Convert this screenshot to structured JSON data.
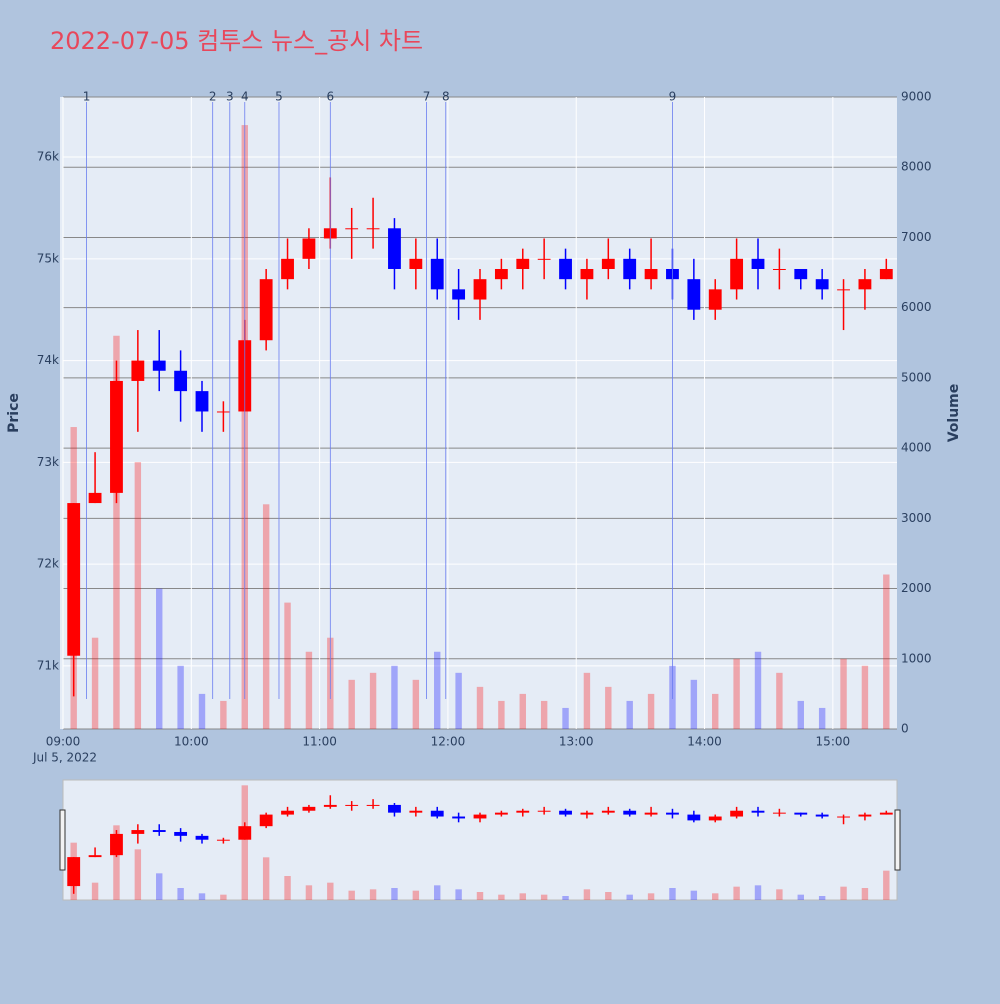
{
  "chart_data": {
    "type": "candlestick",
    "title": "2022-07-05 컴투스 뉴스_공시 차트",
    "x": [
      "09:00",
      "09:10",
      "09:20",
      "09:30",
      "09:40",
      "09:50",
      "10:00",
      "10:10",
      "10:20",
      "10:30",
      "10:40",
      "10:50",
      "11:00",
      "11:10",
      "11:20",
      "11:30",
      "11:40",
      "11:50",
      "12:00",
      "12:10",
      "12:20",
      "12:30",
      "12:40",
      "12:50",
      "13:00",
      "13:10",
      "13:20",
      "13:30",
      "13:40",
      "13:50",
      "14:00",
      "14:10",
      "14:20",
      "14:30",
      "14:40",
      "14:50",
      "15:00",
      "15:10",
      "15:20"
    ],
    "open": [
      71100,
      72600,
      72700,
      73800,
      74000,
      73900,
      73700,
      73500,
      73500,
      74200,
      74800,
      75000,
      75200,
      75300,
      75300,
      75300,
      74900,
      75000,
      74700,
      74600,
      74800,
      74900,
      75000,
      75000,
      74800,
      74900,
      75000,
      74800,
      74900,
      74800,
      74500,
      74700,
      75000,
      74900,
      74900,
      74800,
      74700,
      74700,
      74800
    ],
    "high": [
      72600,
      73100,
      74000,
      74300,
      74300,
      74100,
      73800,
      73600,
      74400,
      74900,
      75200,
      75300,
      75800,
      75500,
      75600,
      75400,
      75200,
      75200,
      74900,
      74900,
      75000,
      75100,
      75200,
      75100,
      75000,
      75200,
      75100,
      75200,
      75100,
      75000,
      74800,
      75200,
      75200,
      75100,
      74900,
      74900,
      74800,
      74900,
      75000
    ],
    "low": [
      70700,
      72600,
      72600,
      73300,
      73700,
      73400,
      73300,
      73300,
      73500,
      74100,
      74700,
      74900,
      75100,
      75000,
      75100,
      74700,
      74700,
      74600,
      74400,
      74400,
      74700,
      74700,
      74800,
      74700,
      74600,
      74800,
      74700,
      74700,
      74600,
      74400,
      74400,
      74600,
      74700,
      74700,
      74700,
      74600,
      74300,
      74500,
      74800
    ],
    "close": [
      72600,
      72700,
      73800,
      74000,
      73900,
      73700,
      73500,
      73500,
      74200,
      74800,
      75000,
      75200,
      75300,
      75300,
      75300,
      74900,
      75000,
      74700,
      74600,
      74800,
      74900,
      75000,
      75000,
      74800,
      74900,
      75000,
      74800,
      74900,
      74800,
      74500,
      74700,
      75000,
      74900,
      74900,
      74800,
      74700,
      74700,
      74800,
      74900
    ],
    "volume": [
      4300,
      1300,
      5600,
      3800,
      2000,
      900,
      500,
      400,
      8600,
      3200,
      1800,
      1100,
      1300,
      700,
      800,
      900,
      700,
      1100,
      800,
      600,
      400,
      500,
      400,
      300,
      800,
      600,
      400,
      500,
      900,
      700,
      500,
      1000,
      1100,
      800,
      400,
      300,
      1000,
      900,
      2200
    ],
    "increasing_color": "#ff0000",
    "decreasing_color": "#0000ff",
    "xlim": [
      "09:00",
      "15:30"
    ],
    "xticks": [
      "09:00",
      "10:00",
      "11:00",
      "12:00",
      "13:00",
      "14:00",
      "15:00"
    ],
    "date_label": "Jul 5, 2022",
    "ylim": [
      70380,
      76590
    ],
    "yticks": [
      {
        "value": 71000,
        "label": "71k"
      },
      {
        "value": 72000,
        "label": "72k"
      },
      {
        "value": 73000,
        "label": "73k"
      },
      {
        "value": 74000,
        "label": "74k"
      },
      {
        "value": 75000,
        "label": "75k"
      },
      {
        "value": 76000,
        "label": "76k"
      }
    ],
    "y2lim": [
      0,
      9000
    ],
    "y2ticks": [
      0,
      1000,
      2000,
      3000,
      4000,
      5000,
      6000,
      7000,
      8000,
      9000
    ],
    "y_title": "Price",
    "y2_title": "Volume",
    "grid": true,
    "events": [
      {
        "x": "09:11",
        "label": "1"
      },
      {
        "x": "10:10",
        "label": "2"
      },
      {
        "x": "10:18",
        "label": "3"
      },
      {
        "x": "10:25",
        "label": "4"
      },
      {
        "x": "10:41",
        "label": "5"
      },
      {
        "x": "11:05",
        "label": "6"
      },
      {
        "x": "11:50",
        "label": "7"
      },
      {
        "x": "11:59",
        "label": "8"
      },
      {
        "x": "13:45",
        "label": "9"
      }
    ]
  }
}
